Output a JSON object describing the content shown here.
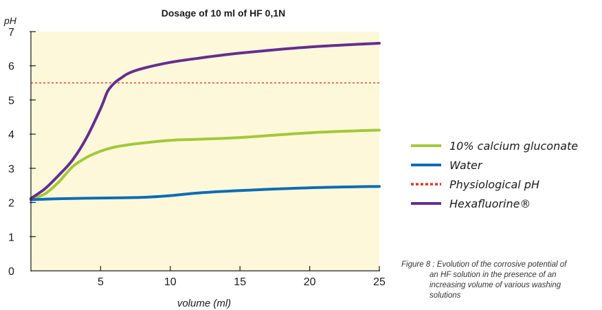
{
  "chart_data": {
    "type": "line",
    "title": "Dosage of 10 ml of HF 0,1N",
    "xlabel": "volume (ml)",
    "ylabel": "pH",
    "xlim": [
      0,
      25
    ],
    "ylim": [
      0,
      7
    ],
    "xticks": [
      5,
      10,
      15,
      20,
      25
    ],
    "yticks": [
      0,
      1,
      2,
      3,
      4,
      5,
      6,
      7
    ],
    "plot_background": "#fdf8d9",
    "legend_position": "right",
    "series": [
      {
        "name": "10% calcium gluconate",
        "color": "#a2c83a",
        "style": "solid",
        "x": [
          0,
          1,
          2,
          3,
          4,
          5,
          6,
          7,
          8,
          10,
          12,
          15,
          20,
          25
        ],
        "y": [
          2.1,
          2.25,
          2.6,
          3.05,
          3.32,
          3.5,
          3.62,
          3.69,
          3.74,
          3.82,
          3.85,
          3.9,
          4.04,
          4.12
        ]
      },
      {
        "name": "Water",
        "color": "#0b6cb5",
        "style": "solid",
        "x": [
          0,
          2,
          5,
          8,
          10,
          12,
          15,
          20,
          25
        ],
        "y": [
          2.08,
          2.11,
          2.13,
          2.15,
          2.2,
          2.28,
          2.35,
          2.43,
          2.47
        ]
      },
      {
        "name": "Physiological pH",
        "color": "#e0322d",
        "style": "dotted",
        "x": [
          0,
          25
        ],
        "y": [
          5.5,
          5.5
        ]
      },
      {
        "name": "Hexafluorine®",
        "color": "#662d91",
        "style": "solid",
        "x": [
          0,
          1,
          2,
          3,
          4,
          5,
          5.5,
          6,
          6.5,
          7,
          8,
          10,
          12,
          15,
          20,
          25
        ],
        "y": [
          2.12,
          2.4,
          2.8,
          3.25,
          3.9,
          4.75,
          5.25,
          5.5,
          5.65,
          5.78,
          5.92,
          6.1,
          6.22,
          6.37,
          6.55,
          6.66
        ]
      }
    ]
  },
  "caption": {
    "line1": "Figure 8 : Evolution of the corrosive potential of",
    "line2": "an HF solution in the presence of an",
    "line3": "increasing volume of various washing",
    "line4": "solutions"
  }
}
